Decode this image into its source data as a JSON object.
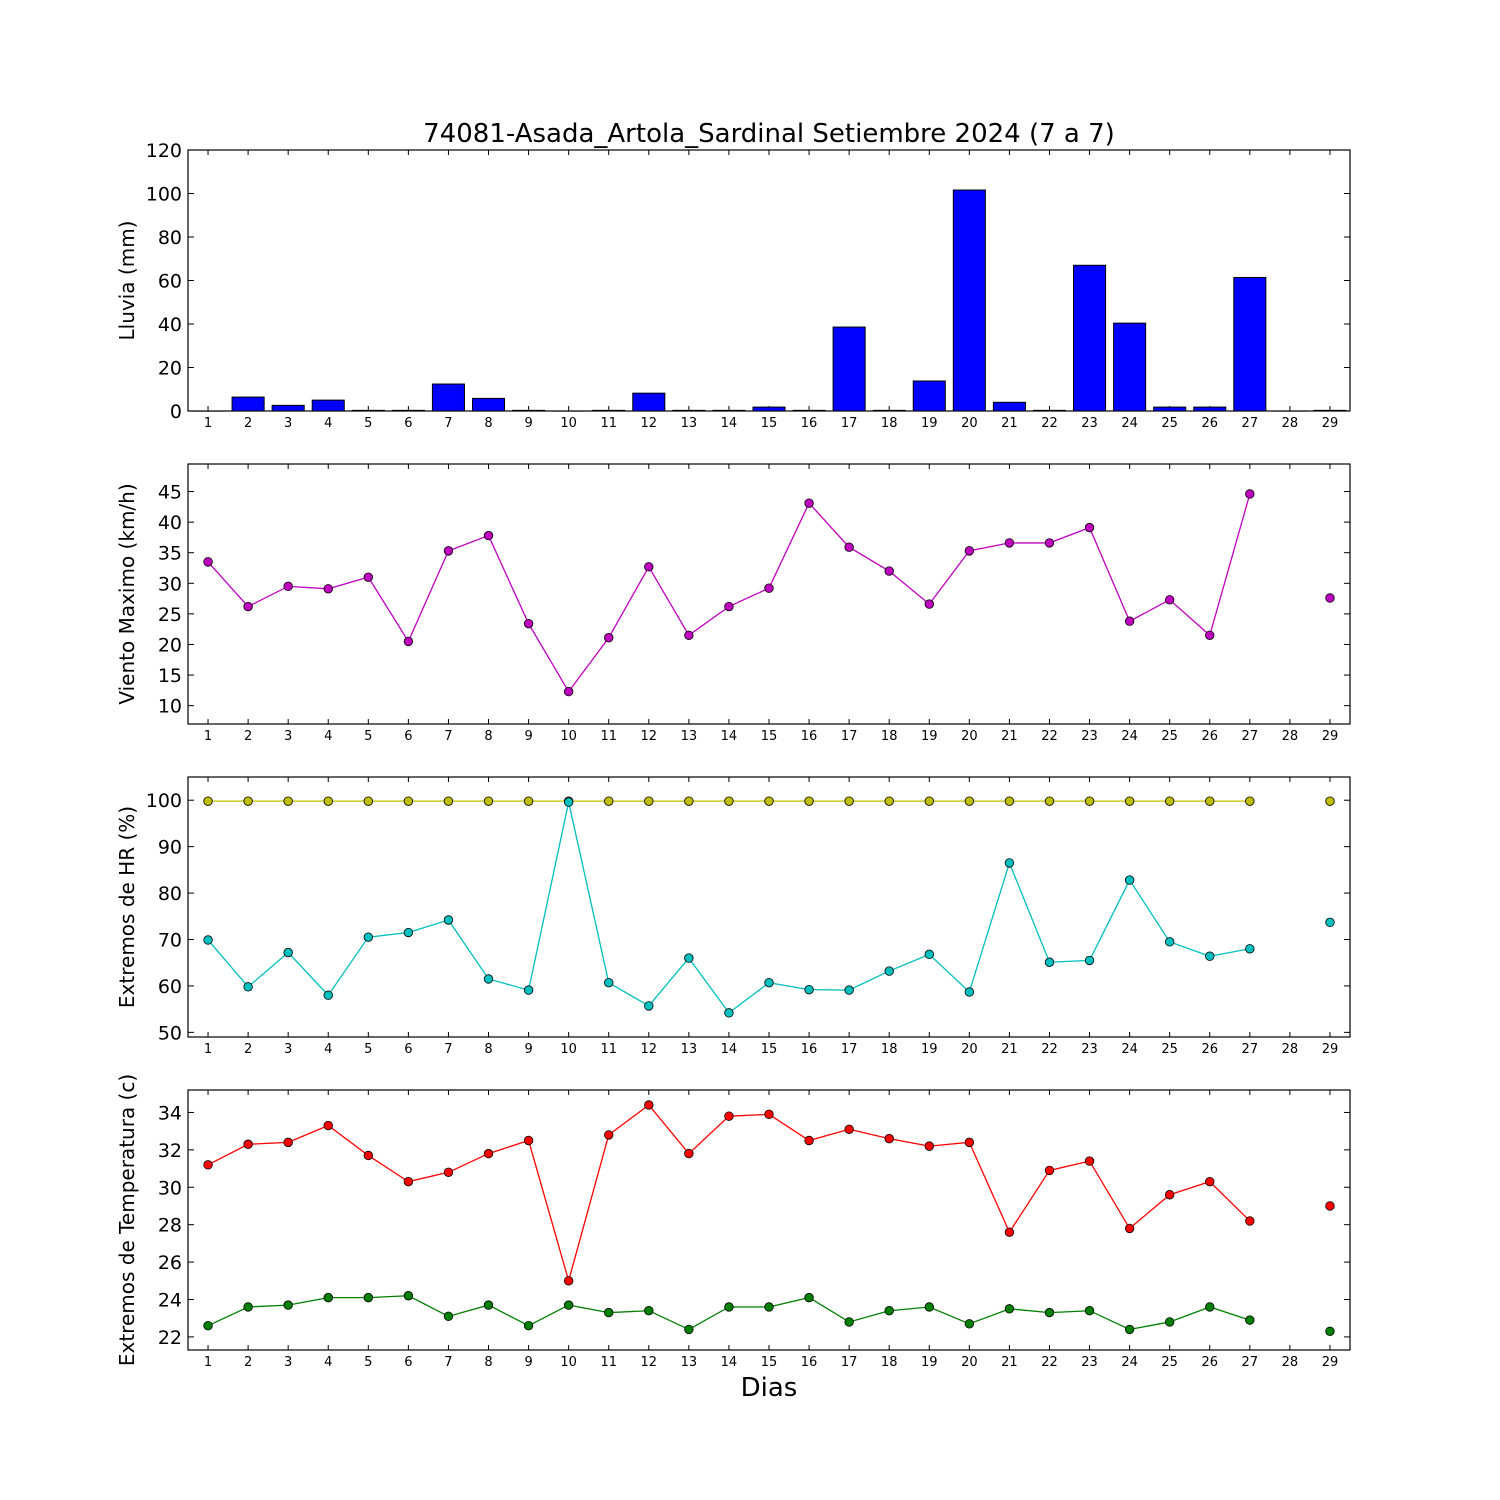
{
  "chart_data": {
    "type": "multi-panel",
    "title": "74081-Asada_Artola_Sardinal Setiembre 2024  (7 a 7)",
    "xlabel": "Dias",
    "days": [
      1,
      2,
      3,
      4,
      5,
      6,
      7,
      8,
      9,
      10,
      11,
      12,
      13,
      14,
      15,
      16,
      17,
      18,
      19,
      20,
      21,
      22,
      23,
      24,
      25,
      26,
      27,
      28,
      29
    ],
    "panels": [
      {
        "type": "bar",
        "ylabel": "Lluvia (mm)",
        "ylim": [
          0,
          120
        ],
        "yticks": [
          0,
          20,
          40,
          60,
          80,
          100,
          120
        ],
        "color": "#0000ff",
        "series": [
          {
            "values": [
              0,
              6.4,
              2.6,
              5.0,
              0.3,
              0.3,
              12.4,
              5.8,
              0.3,
              0,
              0.3,
              8.2,
              0.3,
              0.3,
              1.8,
              0.3,
              38.6,
              0.3,
              13.8,
              101.6,
              4.0,
              0.3,
              67.0,
              40.4,
              1.8,
              1.8,
              61.4,
              0,
              0.3
            ]
          }
        ]
      },
      {
        "type": "line",
        "ylabel": "Viento Maximo (km/h)",
        "ylim": [
          7,
          49.5
        ],
        "yticks": [
          10,
          15,
          20,
          25,
          30,
          35,
          40,
          45
        ],
        "series": [
          {
            "color": "#bf00bf",
            "values": [
              33.5,
              26.2,
              29.5,
              29.1,
              31.0,
              20.5,
              35.3,
              37.8,
              23.4,
              12.3,
              21.1,
              32.7,
              21.5,
              26.2,
              29.2,
              43.1,
              35.9,
              32.0,
              26.6,
              35.3,
              36.6,
              36.6,
              39.1,
              23.8,
              27.3,
              21.5,
              44.6,
              null,
              27.6
            ]
          }
        ]
      },
      {
        "type": "line",
        "ylabel": "Extremos de HR (%)",
        "ylim": [
          49,
          105
        ],
        "yticks": [
          50,
          60,
          70,
          80,
          90,
          100
        ],
        "series": [
          {
            "color": "#bfbf00",
            "values": [
              99.8,
              99.8,
              99.8,
              99.8,
              99.8,
              99.8,
              99.8,
              99.8,
              99.8,
              99.8,
              99.8,
              99.8,
              99.8,
              99.8,
              99.8,
              99.8,
              99.8,
              99.8,
              99.8,
              99.8,
              99.8,
              99.8,
              99.8,
              99.8,
              99.8,
              99.8,
              99.8,
              null,
              99.8
            ]
          },
          {
            "color": "#00bfbf",
            "values": [
              69.9,
              59.8,
              67.2,
              58.0,
              70.5,
              71.5,
              74.2,
              61.5,
              59.1,
              99.6,
              60.7,
              55.7,
              66.0,
              54.2,
              60.7,
              59.2,
              59.1,
              63.2,
              66.8,
              58.7,
              86.5,
              65.1,
              65.5,
              82.8,
              69.5,
              66.4,
              68.0,
              null,
              73.7
            ]
          }
        ]
      },
      {
        "type": "line",
        "ylabel": "Extremos de Temperatura (c)",
        "ylim": [
          21.3,
          35.2
        ],
        "yticks": [
          22,
          24,
          26,
          28,
          30,
          32,
          34
        ],
        "series": [
          {
            "color": "#ff0000",
            "values": [
              31.2,
              32.3,
              32.4,
              33.3,
              31.7,
              30.3,
              30.8,
              31.8,
              32.5,
              25.0,
              32.8,
              34.4,
              31.8,
              33.8,
              33.9,
              32.5,
              33.1,
              32.6,
              32.2,
              32.4,
              27.6,
              30.9,
              31.4,
              27.8,
              29.6,
              30.3,
              28.2,
              null,
              29.0
            ]
          },
          {
            "color": "#008000",
            "values": [
              22.6,
              23.6,
              23.7,
              24.1,
              24.1,
              24.2,
              23.1,
              23.7,
              22.6,
              23.7,
              23.3,
              23.4,
              22.4,
              23.6,
              23.6,
              24.1,
              22.8,
              23.4,
              23.6,
              22.7,
              23.5,
              23.3,
              23.4,
              22.4,
              22.8,
              23.6,
              22.9,
              null,
              22.3
            ]
          }
        ]
      }
    ]
  }
}
